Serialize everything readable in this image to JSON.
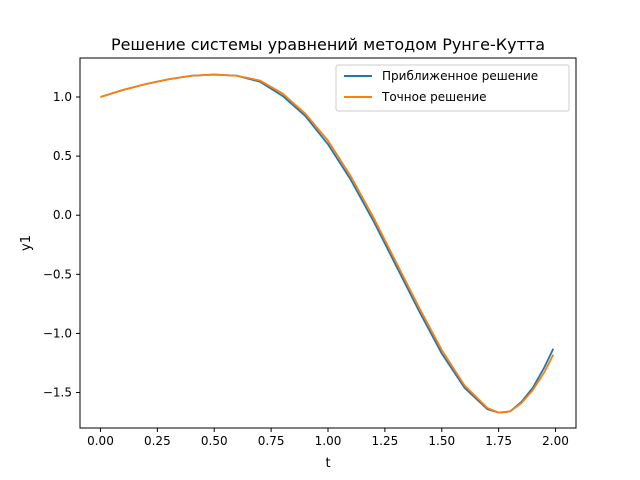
{
  "chart_data": {
    "type": "line",
    "title": "Решение системы уравнений методом Рунге-Кутта",
    "xlabel": "t",
    "ylabel": "y1",
    "xlim": [
      -0.09,
      2.09
    ],
    "ylim": [
      -1.8,
      1.33
    ],
    "xticks": [
      {
        "value": 0.0,
        "label": "0.00"
      },
      {
        "value": 0.25,
        "label": "0.25"
      },
      {
        "value": 0.5,
        "label": "0.50"
      },
      {
        "value": 0.75,
        "label": "0.75"
      },
      {
        "value": 1.0,
        "label": "1.00"
      },
      {
        "value": 1.25,
        "label": "1.25"
      },
      {
        "value": 1.5,
        "label": "1.50"
      },
      {
        "value": 1.75,
        "label": "1.75"
      },
      {
        "value": 2.0,
        "label": "2.00"
      }
    ],
    "yticks": [
      {
        "value": 1.0,
        "label": "1.0"
      },
      {
        "value": 0.5,
        "label": "0.5"
      },
      {
        "value": 0.0,
        "label": "0.0"
      },
      {
        "value": -0.5,
        "label": "−0.5"
      },
      {
        "value": -1.0,
        "label": "−1.0"
      },
      {
        "value": -1.5,
        "label": "−1.5"
      }
    ],
    "grid": false,
    "legend_position": "top-right",
    "x": [
      0.0,
      0.1,
      0.2,
      0.3,
      0.4,
      0.5,
      0.6,
      0.7,
      0.8,
      0.9,
      1.0,
      1.1,
      1.2,
      1.3,
      1.4,
      1.5,
      1.6,
      1.7,
      1.75,
      1.8,
      1.85,
      1.9,
      1.95,
      1.99
    ],
    "series": [
      {
        "name": "Приближенное решение",
        "color": "#1f77b4",
        "values": [
          1.0,
          1.06,
          1.11,
          1.15,
          1.18,
          1.19,
          1.18,
          1.13,
          1.01,
          0.84,
          0.6,
          0.3,
          -0.05,
          -0.43,
          -0.81,
          -1.17,
          -1.46,
          -1.64,
          -1.67,
          -1.66,
          -1.58,
          -1.46,
          -1.29,
          -1.13
        ]
      },
      {
        "name": "Точное решение",
        "color": "#ff7f0e",
        "values": [
          1.0,
          1.06,
          1.11,
          1.15,
          1.18,
          1.19,
          1.18,
          1.14,
          1.03,
          0.86,
          0.63,
          0.33,
          -0.02,
          -0.4,
          -0.78,
          -1.14,
          -1.44,
          -1.63,
          -1.67,
          -1.66,
          -1.59,
          -1.48,
          -1.33,
          -1.18
        ]
      }
    ]
  }
}
